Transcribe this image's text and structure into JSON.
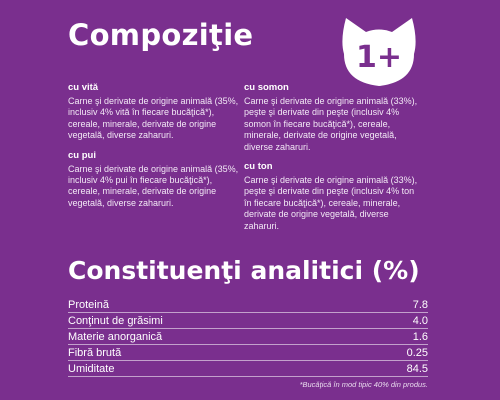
{
  "title": "Compoziţie",
  "badge": {
    "text": "1+",
    "icon": "cat-head-icon",
    "color": "#ffffff"
  },
  "composition": {
    "left": [
      {
        "title": "cu vită",
        "text": "Carne şi derivate de origine animală (35%, inclusiv 4% vită în fiecare bucăţică*), cereale, minerale, derivate de origine vegetală, diverse zaharuri."
      },
      {
        "title": "cu pui",
        "text": "Carne şi derivate de origine animală (35%, inclusiv 4% pui în fiecare bucăţică*), cereale, minerale, derivate de origine vegetală, diverse zaharuri."
      }
    ],
    "right": [
      {
        "title": "cu somon",
        "text": "Carne şi derivate de origine animală (33%), peşte şi derivate din peşte (inclusiv 4% somon în fiecare bucăţică*), cereale, minerale, derivate de origine vegetală, diverse zaharuri."
      },
      {
        "title": "cu ton",
        "text": "Carne şi derivate de origine animală (33%), peşte şi derivate din peşte (inclusiv 4% ton în fiecare bucăţică*), cereale, minerale, derivate de origine vegetală, diverse zaharuri."
      }
    ]
  },
  "analytics": {
    "title": "Constituenţi analitici (%)",
    "rows": [
      {
        "label": "Proteină",
        "value": "7.8"
      },
      {
        "label": "Conţinut de grăsimi",
        "value": "4.0"
      },
      {
        "label": "Materie anorganică",
        "value": "1.6"
      },
      {
        "label": "Fibră brută",
        "value": "0.25"
      },
      {
        "label": "Umiditate",
        "value": "84.5"
      }
    ]
  },
  "footnote": "*Bucăţică în mod tipic 40% din produs.",
  "colors": {
    "background": "#7a2f8e",
    "text": "#ffffff"
  }
}
